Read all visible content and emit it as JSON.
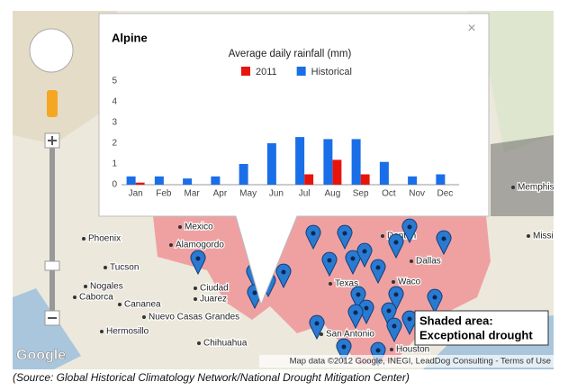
{
  "popup": {
    "title": "Alpine",
    "close": "×"
  },
  "chart_data": {
    "type": "bar",
    "title": "Average daily rainfall (mm)",
    "categories": [
      "Jan",
      "Feb",
      "Mar",
      "Apr",
      "May",
      "Jun",
      "Jul",
      "Aug",
      "Sep",
      "Oct",
      "Nov",
      "Dec"
    ],
    "series": [
      {
        "name": "2011",
        "color": "#e8140c",
        "values": [
          0.1,
          0,
          0,
          0,
          0,
          0,
          0.5,
          1.2,
          0.5,
          0,
          0,
          0
        ]
      },
      {
        "name": "Historical",
        "color": "#1a6fe8",
        "values": [
          0.4,
          0.4,
          0.3,
          0.4,
          1.0,
          2.0,
          2.3,
          2.2,
          2.2,
          1.1,
          0.4,
          0.5
        ]
      }
    ],
    "ylim": [
      0,
      5
    ],
    "yticks": [
      0,
      1,
      2,
      3,
      4,
      5
    ],
    "grid": false
  },
  "map": {
    "labels": [
      "Mexico",
      "Phoenix",
      "Tucson",
      "Alamogordo",
      "Ciudad",
      "Juarez",
      "Texas",
      "Dallas",
      "Denton",
      "Waco",
      "Houston",
      "San Antonio",
      "Chihuahua",
      "Hermosillo",
      "Nuevo Casas Grandes",
      "Cananea",
      "Nogales",
      "Caborca",
      "Memphis",
      "Mississippi"
    ],
    "legend": [
      "Shaded area:",
      "Exceptional drought"
    ],
    "logo": "Google",
    "attribution": "Map data ©2012 Google, INEGI, LeadDog Consulting - Terms of Use"
  },
  "caption": "(Source: Global Historical Climatology Network/National Drought Mitigation Center)"
}
